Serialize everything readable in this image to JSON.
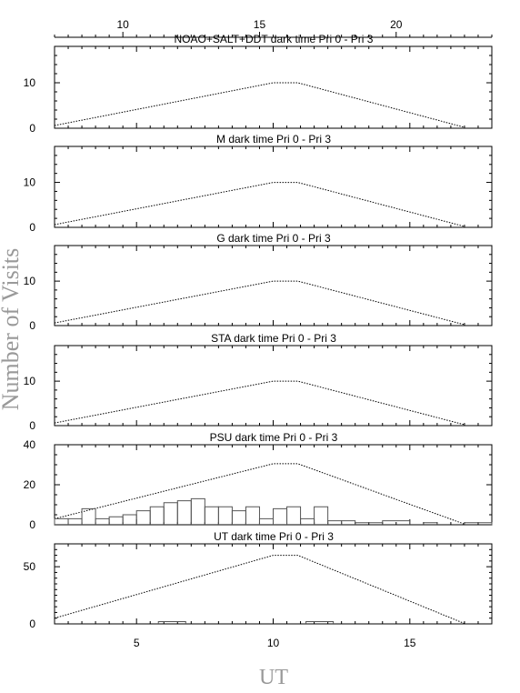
{
  "chart_data": {
    "type": "line",
    "xlabel": "UT",
    "ylabel": "Number of Visits",
    "xlim": [
      2,
      18
    ],
    "x_ticks": [
      5,
      10,
      15
    ],
    "top_axis": {
      "xlim": [
        7.5,
        23.5
      ],
      "ticks": [
        10,
        15,
        20
      ]
    },
    "panels": [
      {
        "title": "NOAO+SALT+DDT dark time Pri 0 - Pri 3",
        "ylim": [
          0,
          18
        ],
        "yticks": [
          0,
          10
        ],
        "envelope": [
          [
            2,
            0.6
          ],
          [
            10,
            10
          ],
          [
            10.9,
            10
          ],
          [
            17,
            0.2
          ]
        ],
        "histogram": []
      },
      {
        "title": "M    dark time Pri 0 - Pri 3",
        "ylim": [
          0,
          18
        ],
        "yticks": [
          0,
          10
        ],
        "envelope": [
          [
            2,
            0.6
          ],
          [
            10,
            10
          ],
          [
            10.9,
            10
          ],
          [
            17,
            0.2
          ]
        ],
        "histogram": []
      },
      {
        "title": "G    dark time Pri 0 - Pri 3",
        "ylim": [
          0,
          18
        ],
        "yticks": [
          0,
          10
        ],
        "envelope": [
          [
            2,
            0.6
          ],
          [
            10,
            10
          ],
          [
            10.9,
            10
          ],
          [
            17,
            0.2
          ]
        ],
        "histogram": []
      },
      {
        "title": "STA    dark time Pri 0 - Pri 3",
        "ylim": [
          0,
          18
        ],
        "yticks": [
          0,
          10
        ],
        "envelope": [
          [
            2,
            0.6
          ],
          [
            10,
            10
          ],
          [
            10.9,
            10
          ],
          [
            17,
            0.2
          ]
        ],
        "histogram": []
      },
      {
        "title": "PSU    dark time Pri 0 - Pri 3",
        "ylim": [
          0,
          40
        ],
        "yticks": [
          0,
          20,
          40
        ],
        "envelope": [
          [
            2,
            3
          ],
          [
            10,
            30.5
          ],
          [
            10.9,
            30.5
          ],
          [
            17,
            0.3
          ]
        ],
        "histogram": [
          [
            2,
            2.5,
            3
          ],
          [
            2.5,
            3,
            3
          ],
          [
            3,
            3.5,
            8
          ],
          [
            3.5,
            4,
            3
          ],
          [
            4,
            4.5,
            4
          ],
          [
            4.5,
            5,
            5
          ],
          [
            5,
            5.5,
            7
          ],
          [
            5.5,
            6,
            9
          ],
          [
            6,
            6.5,
            11
          ],
          [
            6.5,
            7,
            12
          ],
          [
            7,
            7.5,
            13
          ],
          [
            7.5,
            8,
            9
          ],
          [
            8,
            8.5,
            9
          ],
          [
            8.5,
            9,
            7
          ],
          [
            9,
            9.5,
            9
          ],
          [
            9.5,
            10,
            3
          ],
          [
            10,
            10.5,
            8
          ],
          [
            10.5,
            11,
            9
          ],
          [
            11,
            11.5,
            3
          ],
          [
            11.5,
            12,
            9
          ],
          [
            12,
            12.5,
            2
          ],
          [
            12.5,
            13,
            2
          ],
          [
            13,
            14,
            1
          ],
          [
            14,
            15,
            2
          ],
          [
            15,
            15.5,
            0
          ],
          [
            15.5,
            16,
            1
          ],
          [
            16,
            17,
            0
          ],
          [
            17,
            18,
            1
          ]
        ]
      },
      {
        "title": "UT    dark time Pri 0 - Pri 3",
        "ylim": [
          0,
          70
        ],
        "yticks": [
          0,
          50
        ],
        "envelope": [
          [
            2,
            5
          ],
          [
            10,
            60
          ],
          [
            10.9,
            60
          ],
          [
            17,
            0.3
          ]
        ],
        "histogram": [
          [
            5.8,
            6.8,
            2
          ],
          [
            11.2,
            12.2,
            2
          ]
        ]
      }
    ]
  }
}
